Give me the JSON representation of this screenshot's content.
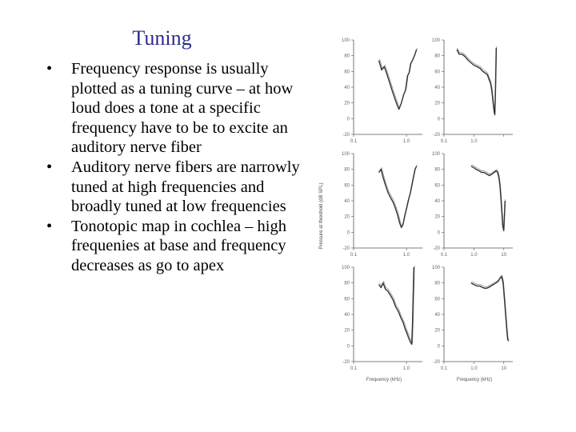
{
  "slide": {
    "title": "Tuning",
    "bullets": [
      "Frequency response is usually plotted as a tuning curve – at how loud does a tone at a specific frequency have to be to excite an auditory nerve fiber",
      "Auditory nerve fibers are narrowly tuned at high frequencies and broadly tuned at low frequencies",
      "Tonotopic map in cochlea – high frequenies at base and frequency decreases as go to apex"
    ],
    "bullet_glyph": "•"
  },
  "figure": {
    "ylabel": "Pressure at threshold (dB SPL)",
    "xlabel": "Frequency (kHz)",
    "ytick_labels": [
      "100",
      "80",
      "60",
      "40",
      "20",
      "0",
      "-20"
    ],
    "line_color": "#333333"
  },
  "chart_data": [
    {
      "type": "line",
      "title": "",
      "xlabel": "",
      "ylabel": "",
      "xscale": "log",
      "xlim": [
        0.1,
        2.0
      ],
      "ylim": [
        -20,
        100
      ],
      "xtick_labels": [
        "0.1",
        "1.0"
      ],
      "series": [
        {
          "x": [
            0.3,
            0.34,
            0.38,
            0.42,
            0.48,
            0.54,
            0.6,
            0.66,
            0.72,
            0.8,
            0.88,
            0.96,
            1.05,
            1.12,
            1.2,
            1.3,
            1.45,
            1.55
          ],
          "y": [
            74,
            62,
            66,
            58,
            46,
            35,
            26,
            18,
            12,
            20,
            30,
            36,
            55,
            58,
            70,
            74,
            82,
            88
          ]
        }
      ]
    },
    {
      "type": "line",
      "title": "",
      "xlabel": "",
      "ylabel": "",
      "xscale": "log",
      "xlim": [
        0.1,
        20
      ],
      "ylim": [
        -20,
        100
      ],
      "xtick_labels": [
        "0.1",
        "1.0"
      ],
      "series": [
        {
          "x": [
            0.27,
            0.32,
            0.4,
            0.5,
            0.65,
            0.8,
            1.0,
            1.3,
            1.6,
            2.0,
            2.4,
            2.8,
            3.2,
            3.6,
            4.0,
            4.4,
            4.8,
            5.0,
            5.3,
            5.6
          ],
          "y": [
            88,
            82,
            82,
            79,
            74,
            71,
            68,
            66,
            64,
            60,
            58,
            56,
            50,
            45,
            35,
            20,
            8,
            5,
            40,
            90
          ]
        }
      ]
    },
    {
      "type": "line",
      "title": "",
      "xlabel": "",
      "ylabel": "",
      "xscale": "log",
      "xlim": [
        0.1,
        2.0
      ],
      "ylim": [
        -20,
        100
      ],
      "xtick_labels": [
        "0.1",
        "1.0"
      ],
      "series": [
        {
          "x": [
            0.3,
            0.33,
            0.36,
            0.4,
            0.45,
            0.5,
            0.56,
            0.62,
            0.68,
            0.74,
            0.8,
            0.86,
            0.92,
            1.0,
            1.08,
            1.18,
            1.3,
            1.45,
            1.55
          ],
          "y": [
            76,
            80,
            70,
            60,
            50,
            44,
            38,
            30,
            22,
            12,
            6,
            10,
            20,
            30,
            40,
            50,
            64,
            80,
            84
          ]
        }
      ]
    },
    {
      "type": "line",
      "title": "",
      "xlabel": "",
      "ylabel": "",
      "xscale": "log",
      "xlim": [
        0.1,
        20
      ],
      "ylim": [
        -20,
        100
      ],
      "xtick_labels": [
        "0.1",
        "1.0",
        "10"
      ],
      "series": [
        {
          "x": [
            0.8,
            1.0,
            1.2,
            1.5,
            1.8,
            2.2,
            2.7,
            3.3,
            4.0,
            4.8,
            5.6,
            6.2,
            6.8,
            7.4,
            8.0,
            8.6,
            9.2,
            10.0,
            11.0
          ],
          "y": [
            84,
            82,
            80,
            78,
            76,
            76,
            74,
            72,
            74,
            76,
            78,
            76,
            70,
            60,
            44,
            26,
            8,
            2,
            40
          ]
        }
      ]
    },
    {
      "type": "line",
      "title": "",
      "xlabel": "Frequency (kHz)",
      "ylabel": "",
      "xscale": "log",
      "xlim": [
        0.1,
        2.0
      ],
      "ylim": [
        -20,
        100
      ],
      "xtick_labels": [
        "0.1",
        "1.0"
      ],
      "series": [
        {
          "x": [
            0.3,
            0.33,
            0.36,
            0.4,
            0.44,
            0.5,
            0.56,
            0.62,
            0.7,
            0.78,
            0.86,
            0.94,
            1.02,
            1.1,
            1.18,
            1.26,
            1.3,
            1.38
          ],
          "y": [
            78,
            74,
            80,
            72,
            70,
            64,
            58,
            50,
            44,
            36,
            30,
            22,
            16,
            10,
            5,
            2,
            28,
            100
          ]
        }
      ]
    },
    {
      "type": "line",
      "title": "",
      "xlabel": "Frequency (kHz)",
      "ylabel": "",
      "xscale": "log",
      "xlim": [
        0.1,
        20
      ],
      "ylim": [
        -20,
        100
      ],
      "xtick_labels": [
        "0.1",
        "1.0",
        "10"
      ],
      "series": [
        {
          "x": [
            0.8,
            1.0,
            1.3,
            1.6,
            2.0,
            2.5,
            3.0,
            3.7,
            4.5,
            5.5,
            6.5,
            7.5,
            8.5,
            9.5,
            10.5,
            11.5,
            12.5,
            13.5,
            14.5
          ],
          "y": [
            80,
            78,
            76,
            76,
            74,
            73,
            74,
            76,
            78,
            80,
            82,
            86,
            88,
            80,
            60,
            40,
            22,
            8,
            6
          ]
        }
      ]
    }
  ]
}
